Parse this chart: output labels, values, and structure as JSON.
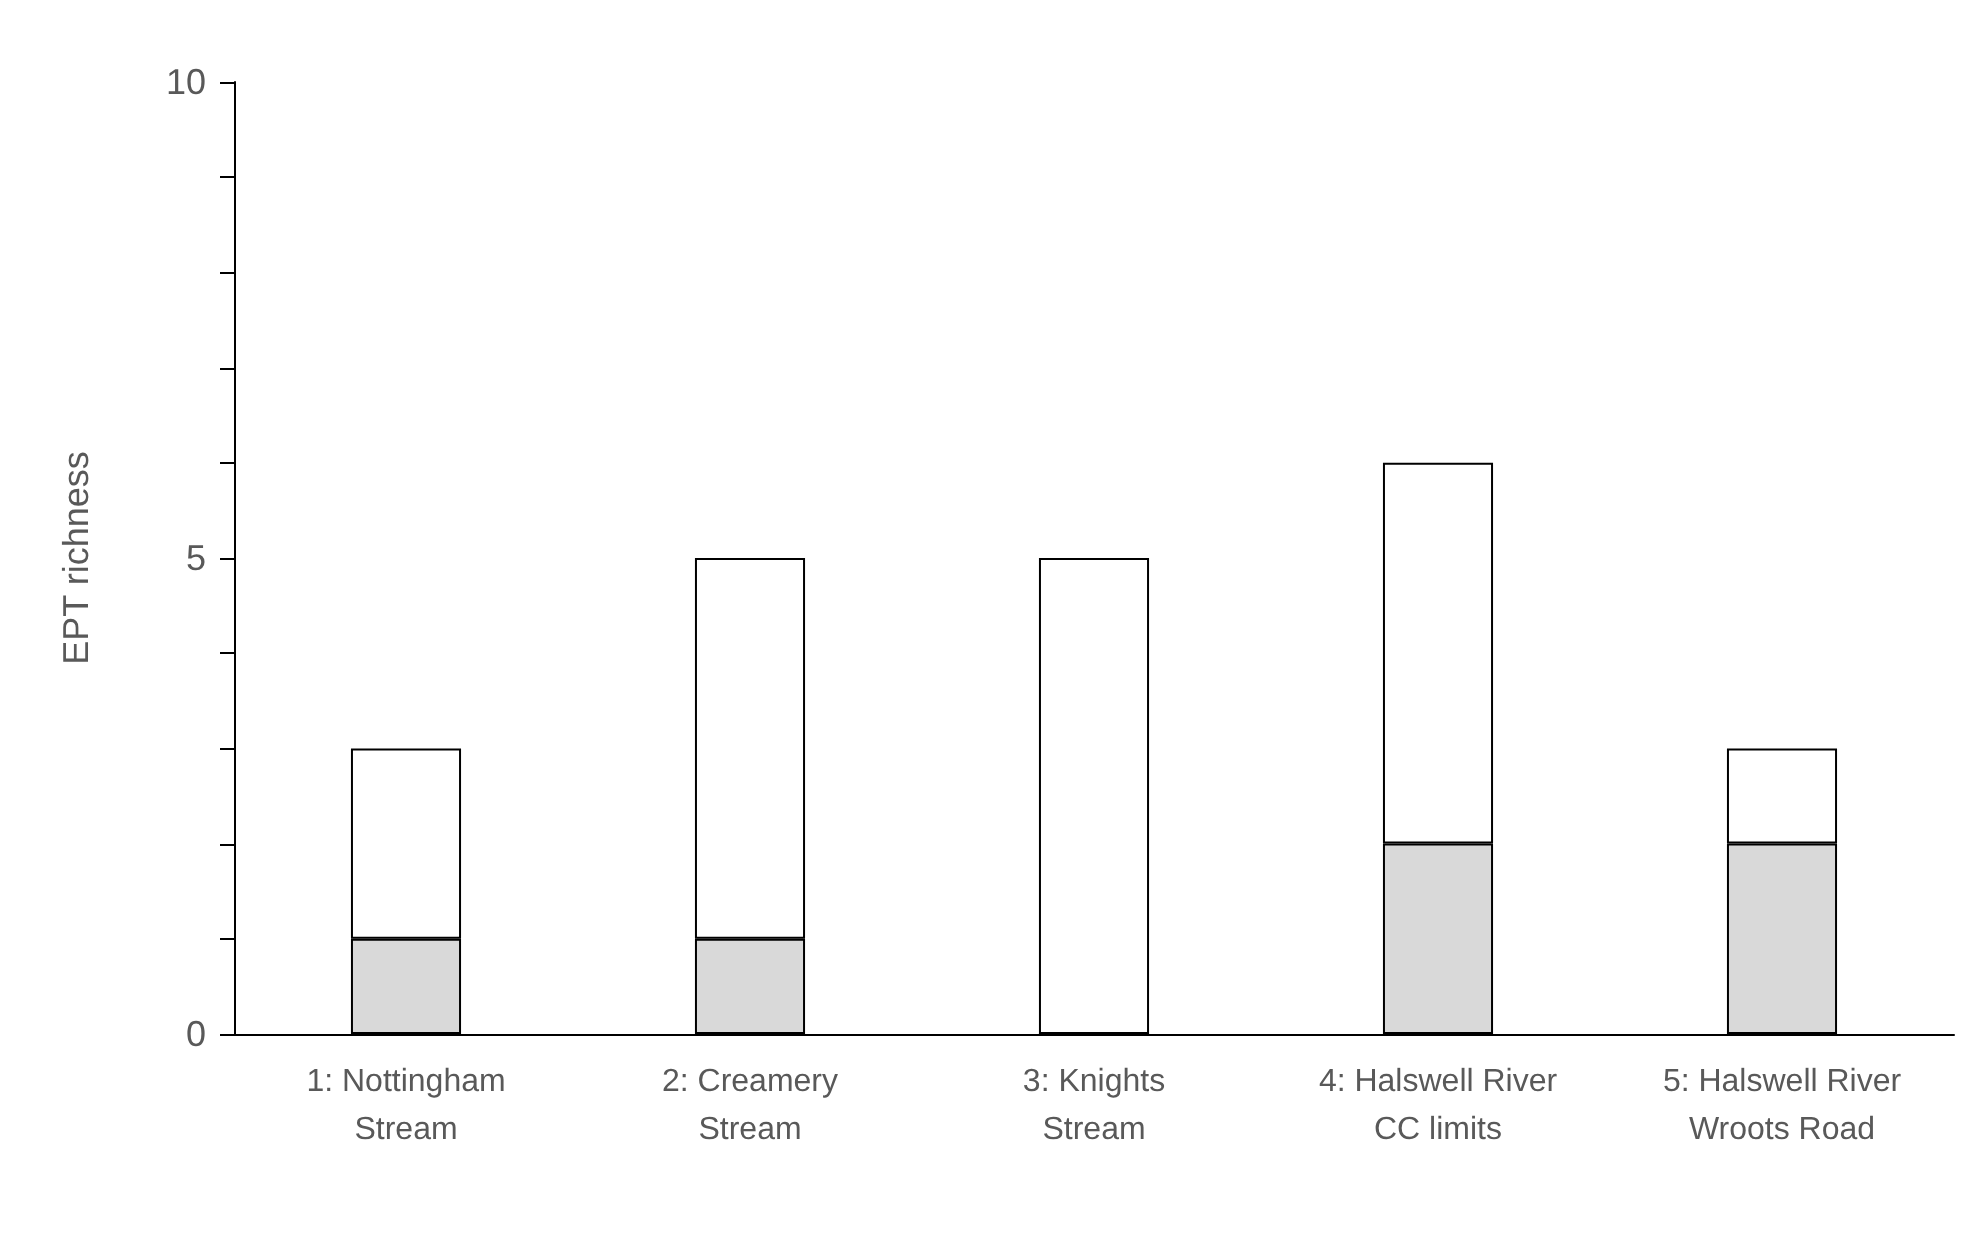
{
  "chart_data": {
    "type": "bar",
    "stacked": true,
    "ylabel": "EPT richness",
    "categories": [
      "1: Nottingham\nStream",
      "2: Creamery\nStream",
      "3: Knights\nStream",
      "4: Halswell River\nCC limits",
      "5: Halswell River\nWroots Road"
    ],
    "series": [
      {
        "color": "#d9d9d9",
        "values": [
          1,
          1,
          0,
          2,
          2
        ]
      },
      {
        "color": "#ffffff",
        "values": [
          2,
          4,
          5,
          4,
          1
        ]
      }
    ],
    "ylim": [
      0,
      10
    ],
    "yticks": [
      0,
      {
        "value": 1,
        "label": null
      },
      {
        "value": 2,
        "label": null
      },
      {
        "value": 3,
        "label": null
      },
      {
        "value": 4,
        "label": null
      },
      5,
      {
        "value": 6,
        "label": null
      },
      {
        "value": 7,
        "label": null
      },
      {
        "value": 8,
        "label": null
      },
      {
        "value": 9,
        "label": null
      },
      10
    ],
    "grid": false
  }
}
